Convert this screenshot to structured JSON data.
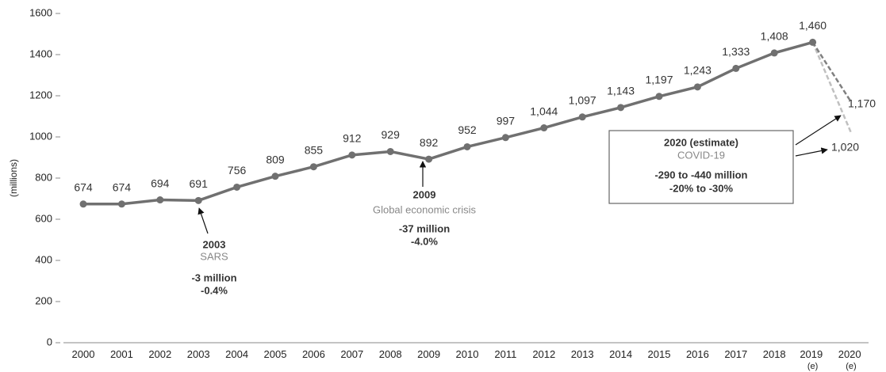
{
  "chart_data": {
    "type": "line",
    "y_label": "(millions)",
    "categories": [
      "2000",
      "2001",
      "2002",
      "2003",
      "2004",
      "2005",
      "2006",
      "2007",
      "2008",
      "2009",
      "2010",
      "2011",
      "2012",
      "2013",
      "2014",
      "2015",
      "2016",
      "2017",
      "2018",
      "2019 (e)",
      "2020 (e)"
    ],
    "series": [
      {
        "color": "#707070",
        "style": "solid",
        "values": [
          674,
          674,
          694,
          691,
          756,
          809,
          855,
          912,
          929,
          892,
          952,
          997,
          1044,
          1097,
          1143,
          1197,
          1243,
          1333,
          1408,
          1460,
          null
        ],
        "value_labels": [
          "674",
          "674",
          "694",
          "691",
          "756",
          "809",
          "855",
          "912",
          "929",
          "892",
          "952",
          "997",
          "1,044",
          "1,097",
          "1,143",
          "1,197",
          "1,243",
          "1,333",
          "1,408",
          "1,460",
          null
        ]
      },
      {
        "color": "#808080",
        "style": "dashed",
        "values": [
          null,
          null,
          null,
          null,
          null,
          null,
          null,
          null,
          null,
          null,
          null,
          null,
          null,
          null,
          null,
          null,
          null,
          null,
          null,
          1460,
          1170
        ],
        "value_labels": [
          null,
          null,
          null,
          null,
          null,
          null,
          null,
          null,
          null,
          null,
          null,
          null,
          null,
          null,
          null,
          null,
          null,
          null,
          null,
          null,
          "1,170"
        ]
      },
      {
        "color": "#c0c0c0",
        "style": "dashed",
        "values": [
          null,
          null,
          null,
          null,
          null,
          null,
          null,
          null,
          null,
          null,
          null,
          null,
          null,
          null,
          null,
          null,
          null,
          null,
          null,
          1460,
          1020
        ],
        "value_labels": [
          null,
          null,
          null,
          null,
          null,
          null,
          null,
          null,
          null,
          null,
          null,
          null,
          null,
          null,
          null,
          null,
          null,
          null,
          null,
          null,
          "1,020"
        ]
      }
    ],
    "ylim": [
      0,
      1600
    ],
    "yticks": [
      0,
      200,
      400,
      600,
      800,
      1000,
      1200,
      1400,
      1600
    ],
    "grid": false,
    "annotations": [
      {
        "title": "2003",
        "subtitle": "SARS",
        "lines": [
          "-3 million",
          "-0.4%"
        ]
      },
      {
        "title": "2009",
        "subtitle": "Global economic crisis",
        "lines": [
          "-37 million",
          "-4.0%"
        ]
      },
      {
        "title": "2020 (estimate)",
        "subtitle": "COVID-19",
        "lines": [
          "-290 to -440 million",
          "-20% to -30%"
        ]
      }
    ]
  }
}
